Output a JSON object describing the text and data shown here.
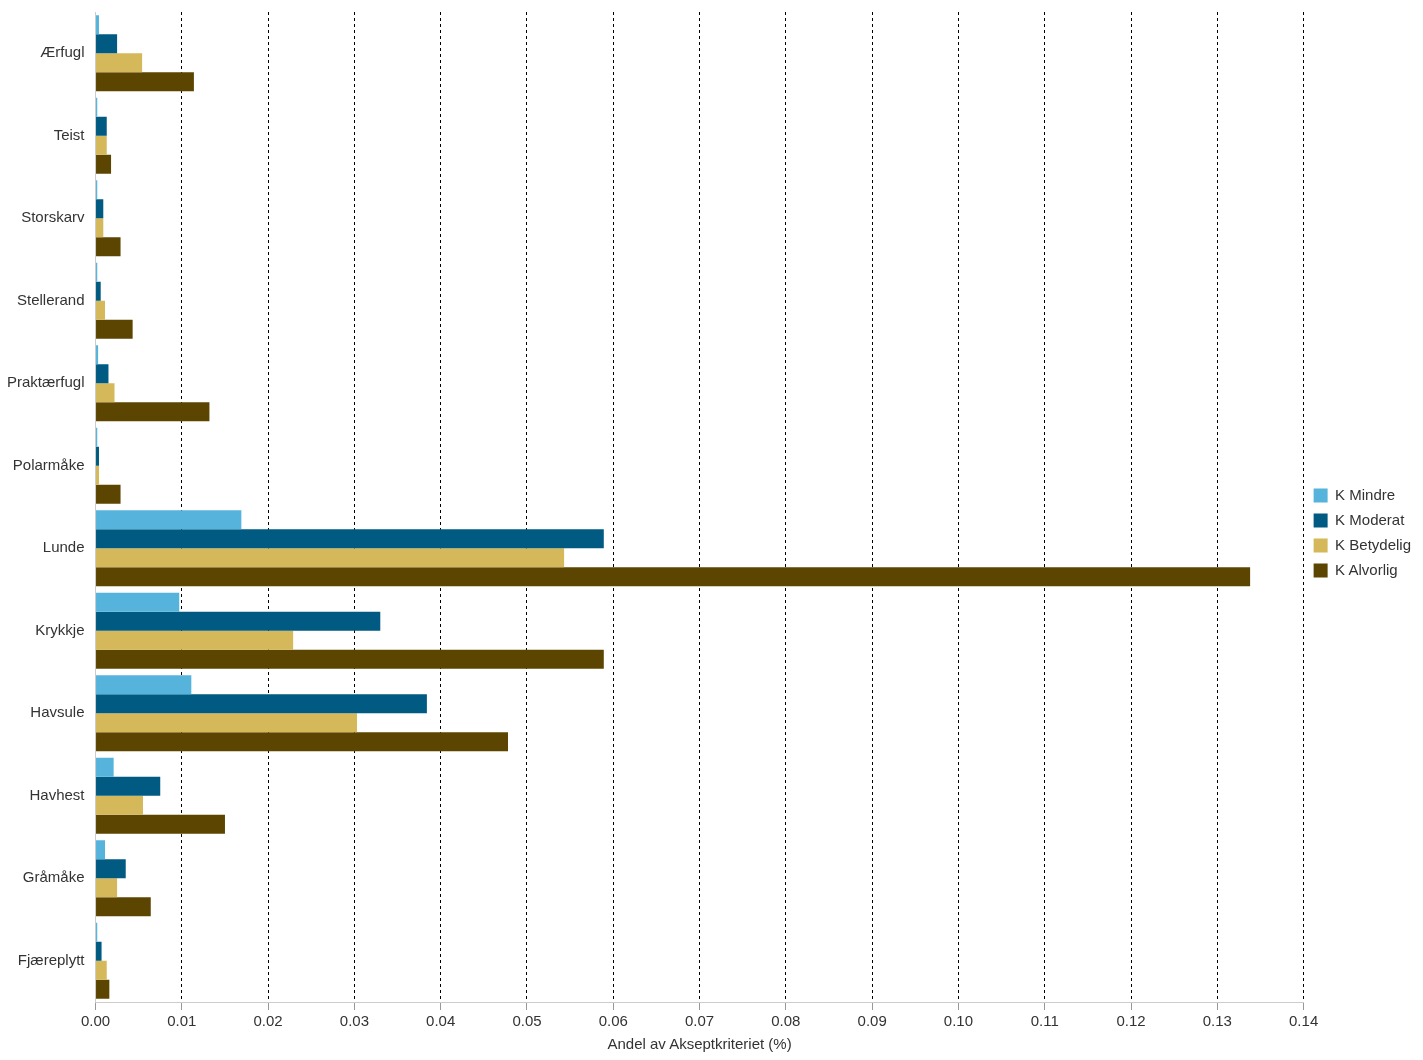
{
  "chart_data": {
    "type": "bar",
    "orientation": "horizontal",
    "xlabel": "Andel av Akseptkriteriet (%)",
    "categories": [
      "Ærfugl",
      "Teist",
      "Storskarv",
      "Stellerand",
      "Praktærfugl",
      "Polarmåke",
      "Lunde",
      "Krykkje",
      "Havsule",
      "Havhest",
      "Gråmåke",
      "Fjæreplytt"
    ],
    "series": [
      {
        "name": "K Mindre",
        "color": "#56b4dc",
        "values": [
          0.0004,
          0.0002,
          0.0002,
          0.0002,
          0.0003,
          0.0002,
          0.0169,
          0.0097,
          0.0111,
          0.0021,
          0.0011,
          0.0002
        ]
      },
      {
        "name": "K Moderat",
        "color": "#005a82",
        "values": [
          0.0025,
          0.0013,
          0.0009,
          0.0006,
          0.0015,
          0.0004,
          0.0589,
          0.033,
          0.0384,
          0.0075,
          0.0035,
          0.0007
        ]
      },
      {
        "name": "K Betydelig",
        "color": "#d4b85a",
        "values": [
          0.0054,
          0.0013,
          0.0009,
          0.0011,
          0.0022,
          0.0004,
          0.0543,
          0.0229,
          0.0303,
          0.0055,
          0.0025,
          0.0013
        ]
      },
      {
        "name": "K Alvorlig",
        "color": "#5c4500",
        "values": [
          0.0114,
          0.0018,
          0.0029,
          0.0043,
          0.0132,
          0.0029,
          0.1338,
          0.0589,
          0.0478,
          0.015,
          0.0064,
          0.0016
        ]
      }
    ],
    "xlim": [
      0,
      0.14
    ],
    "xticks": [
      {
        "value": 0,
        "label": "0.00"
      },
      0.01,
      0.02,
      0.03,
      0.04,
      0.05,
      0.06,
      0.07,
      0.08,
      0.09,
      {
        "value": 0.1,
        "label": "0.10"
      },
      0.11,
      0.12,
      0.13,
      0.14
    ],
    "grid": "x",
    "legend": "right"
  }
}
